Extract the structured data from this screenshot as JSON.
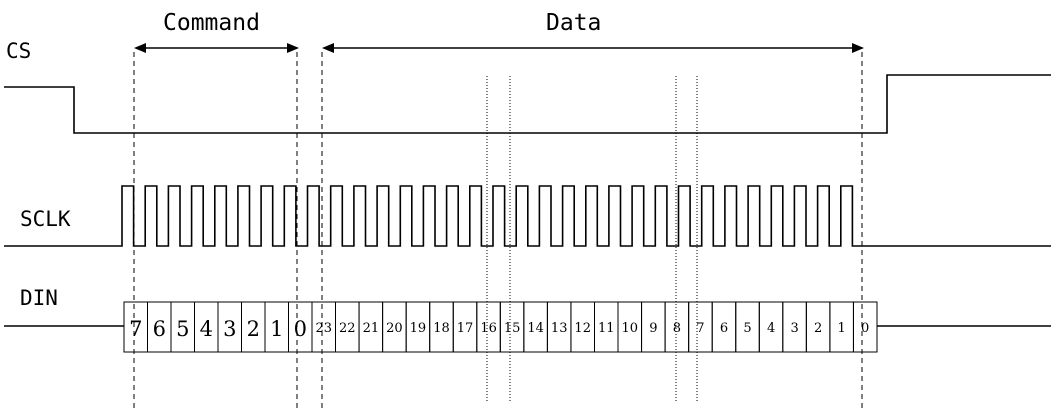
{
  "signals": {
    "cs": "CS",
    "sclk": "SCLK",
    "din": "DIN"
  },
  "phases": {
    "command": "Command",
    "data": "Data"
  },
  "din_bits": {
    "command": [
      "7",
      "6",
      "5",
      "4",
      "3",
      "2",
      "1",
      "0"
    ],
    "data": [
      "23",
      "22",
      "21",
      "20",
      "19",
      "18",
      "17",
      "16",
      "15",
      "14",
      "13",
      "12",
      "11",
      "10",
      "9",
      "8",
      "7",
      "6",
      "5",
      "4",
      "3",
      "2",
      "1",
      "0"
    ]
  },
  "sclk_cycles": 32
}
